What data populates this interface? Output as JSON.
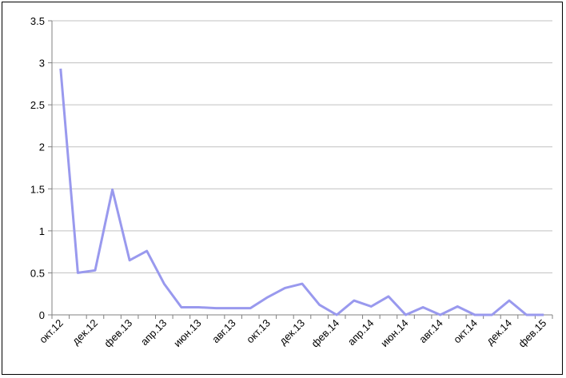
{
  "chart_data": {
    "type": "line",
    "title": "",
    "xlabel": "",
    "ylabel": "",
    "ylim": [
      0,
      3.5
    ],
    "yticks": [
      "0",
      "0.5",
      "1",
      "1.5",
      "2",
      "2.5",
      "3",
      "3.5"
    ],
    "x_tick_labels": [
      "окт.12",
      "дек.12",
      "фев.13",
      "апр.13",
      "июн.13",
      "авг.13",
      "окт.13",
      "дек.13",
      "фев.14",
      "апр.14",
      "июн.14",
      "авг.14",
      "окт.14",
      "дек.14",
      "фев.15"
    ],
    "grid": "horizontal",
    "legend": "none",
    "series_color": "#9999ee",
    "categories": [
      "окт.12",
      "ноя.12",
      "дек.12",
      "янв.13",
      "фев.13",
      "мар.13",
      "апр.13",
      "май.13",
      "июн.13",
      "июл.13",
      "авг.13",
      "сен.13",
      "окт.13",
      "ноя.13",
      "дек.13",
      "янв.14",
      "фев.14",
      "мар.14",
      "апр.14",
      "май.14",
      "июн.14",
      "июл.14",
      "авг.14",
      "сен.14",
      "окт.14",
      "ноя.14",
      "дек.14",
      "янв.15",
      "фев.15"
    ],
    "values": [
      2.93,
      0.5,
      0.53,
      1.49,
      0.65,
      0.76,
      0.37,
      0.09,
      0.09,
      0.08,
      0.08,
      0.08,
      0.21,
      0.32,
      0.37,
      0.12,
      0.0,
      0.17,
      0.1,
      0.22,
      0.0,
      0.09,
      0.0,
      0.1,
      0.0,
      0.0,
      0.17,
      0.0,
      0.0
    ]
  }
}
